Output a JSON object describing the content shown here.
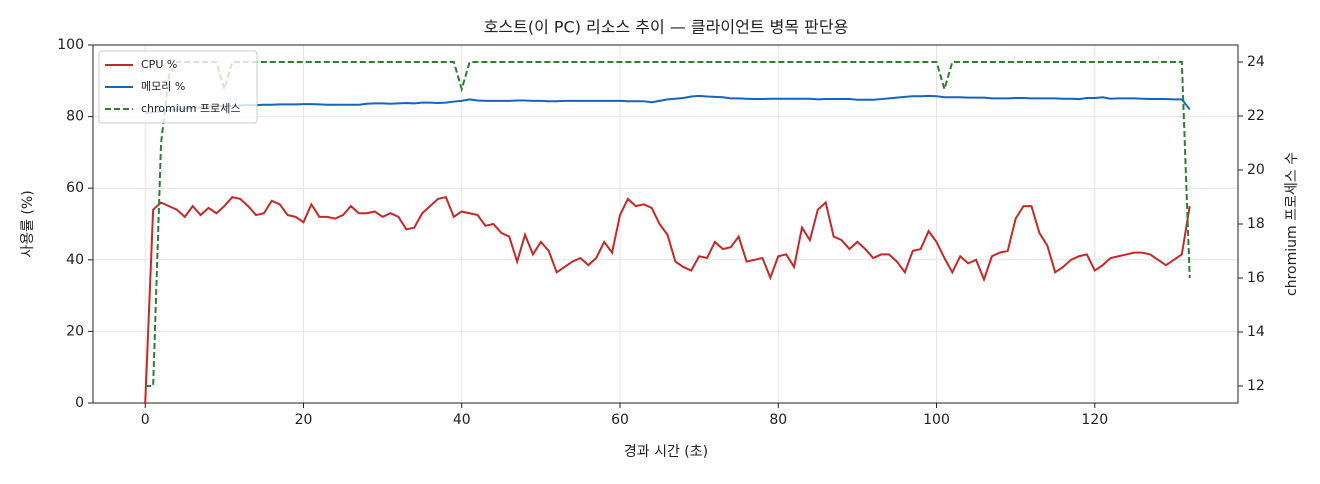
{
  "chart_data": {
    "type": "line",
    "title": "호스트(이 PC) 리소스 추이 — 클라이언트 병목 판단용",
    "xlabel": "경과 시간 (초)",
    "ylabel": "사용률 (%)",
    "y2label": "chromium 프로세스 수",
    "x": [
      0,
      1,
      2,
      3,
      4,
      5,
      6,
      7,
      8,
      9,
      10,
      11,
      12,
      13,
      14,
      15,
      16,
      17,
      18,
      19,
      20,
      21,
      22,
      23,
      24,
      25,
      26,
      27,
      28,
      29,
      30,
      31,
      32,
      33,
      34,
      35,
      36,
      37,
      38,
      39,
      40,
      41,
      42,
      43,
      44,
      45,
      46,
      47,
      48,
      49,
      50,
      51,
      52,
      53,
      54,
      55,
      56,
      57,
      58,
      59,
      60,
      61,
      62,
      63,
      64,
      65,
      66,
      67,
      68,
      69,
      70,
      71,
      72,
      73,
      74,
      75,
      76,
      77,
      78,
      79,
      80,
      81,
      82,
      83,
      84,
      85,
      86,
      87,
      88,
      89,
      90,
      91,
      92,
      93,
      94,
      95,
      96,
      97,
      98,
      99,
      100,
      101,
      102,
      103,
      104,
      105,
      106,
      107,
      108,
      109,
      110,
      111,
      112,
      113,
      114,
      115,
      116,
      117,
      118,
      119,
      120,
      121,
      122,
      123,
      124,
      125,
      126,
      127,
      128,
      129,
      130,
      131,
      132
    ],
    "series": [
      {
        "name": "CPU %",
        "color": "#c62828",
        "dash": false,
        "values": [
          0,
          54,
          56,
          55,
          54,
          52,
          55,
          52.5,
          54.5,
          53,
          55,
          57.5,
          57,
          55,
          52.5,
          53,
          56.5,
          55.5,
          52.5,
          52,
          50.5,
          55.5,
          52,
          52,
          51.5,
          52.5,
          55,
          53,
          53,
          53.5,
          52,
          53,
          52,
          48.5,
          49,
          53,
          55,
          57,
          57.5,
          52,
          53.5,
          53,
          52.5,
          49.5,
          50,
          47.5,
          46.5,
          39.5,
          47,
          41.5,
          45,
          42.5,
          36.5,
          38,
          39.5,
          40.5,
          38.5,
          40.5,
          45,
          42,
          52.5,
          57,
          55,
          55.5,
          54.5,
          50,
          47,
          39.5,
          38,
          37,
          41,
          40.5,
          45,
          43,
          43.5,
          46.5,
          39.5,
          40,
          40.5,
          35,
          41,
          41.5,
          38,
          49,
          45.5,
          54,
          56,
          46.5,
          45.5,
          43,
          45,
          43,
          40.5,
          41.5,
          41.5,
          39.5,
          36.5,
          42.5,
          43,
          48,
          45,
          40.5,
          36.5,
          41,
          39,
          40,
          34.5,
          41,
          42,
          42.5,
          51.5,
          55,
          55,
          47.5,
          44,
          36.5,
          38,
          40,
          41,
          41.5,
          37,
          38.5,
          40.5,
          41,
          41.5,
          42,
          42,
          41.5,
          40,
          38.5,
          40,
          41.5,
          55
        ]
      },
      {
        "name": "메모리 %",
        "color": "#1565c0",
        "dash": false,
        "values": [
          81,
          81.2,
          81.5,
          81.8,
          82,
          82.2,
          82.4,
          82.6,
          82.8,
          83,
          83,
          83,
          83.1,
          83.2,
          83.2,
          83.3,
          83.3,
          83.4,
          83.4,
          83.4,
          83.5,
          83.5,
          83.4,
          83.3,
          83.3,
          83.3,
          83.3,
          83.3,
          83.6,
          83.7,
          83.7,
          83.6,
          83.7,
          83.8,
          83.7,
          83.9,
          83.9,
          83.8,
          83.9,
          84.2,
          84.4,
          84.8,
          84.5,
          84.4,
          84.4,
          84.4,
          84.4,
          84.5,
          84.5,
          84.4,
          84.4,
          84.3,
          84.3,
          84.4,
          84.4,
          84.4,
          84.4,
          84.4,
          84.4,
          84.4,
          84.4,
          84.3,
          84.3,
          84.3,
          84,
          84.4,
          84.8,
          85,
          85.2,
          85.6,
          85.8,
          85.6,
          85.5,
          85.4,
          85.1,
          85.1,
          85,
          84.9,
          84.9,
          85,
          85,
          85,
          85,
          85,
          85,
          84.8,
          84.9,
          84.9,
          84.9,
          84.9,
          84.7,
          84.7,
          84.7,
          84.9,
          85.1,
          85.3,
          85.5,
          85.7,
          85.7,
          85.8,
          85.7,
          85.4,
          85.4,
          85.4,
          85.3,
          85.3,
          85.3,
          85.1,
          85.1,
          85.1,
          85.2,
          85.2,
          85.1,
          85.1,
          85.1,
          85.1,
          85,
          85,
          84.9,
          85.2,
          85.2,
          85.4,
          85,
          85.1,
          85.1,
          85.1,
          85,
          84.9,
          84.9,
          84.9,
          84.8,
          84.8,
          82
        ]
      },
      {
        "name": "chromium 프로세스",
        "color": "#2e7d32",
        "dash": true,
        "axis": "y2",
        "values": [
          12,
          12,
          21,
          23.5,
          24,
          24,
          24,
          24,
          24,
          24,
          23,
          24,
          24,
          24,
          24,
          24,
          24,
          24,
          24,
          24,
          24,
          24,
          24,
          24,
          24,
          24,
          24,
          24,
          24,
          24,
          24,
          24,
          24,
          24,
          24,
          24,
          24,
          24,
          24,
          24,
          23,
          24,
          24,
          24,
          24,
          24,
          24,
          24,
          24,
          24,
          24,
          24,
          24,
          24,
          24,
          24,
          24,
          24,
          24,
          24,
          24,
          24,
          24,
          24,
          24,
          24,
          24,
          24,
          24,
          24,
          24,
          24,
          24,
          24,
          24,
          24,
          24,
          24,
          24,
          24,
          24,
          24,
          24,
          24,
          24,
          24,
          24,
          24,
          24,
          24,
          24,
          24,
          24,
          24,
          24,
          24,
          24,
          24,
          24,
          24,
          24,
          23,
          24,
          24,
          24,
          24,
          24,
          24,
          24,
          24,
          24,
          24,
          24,
          24,
          24,
          24,
          24,
          24,
          24,
          24,
          24,
          24,
          24,
          24,
          24,
          24,
          24,
          24,
          24,
          24,
          24,
          24,
          16
        ]
      }
    ],
    "xlim": [
      -6.6,
      138.1
    ],
    "xticks": [
      0,
      20,
      40,
      60,
      80,
      100,
      120
    ],
    "ylim": [
      0,
      100
    ],
    "yticks": [
      0,
      20,
      40,
      60,
      80,
      100
    ],
    "y2lim": [
      11.37,
      24.63
    ],
    "y2ticks": [
      12,
      14,
      16,
      18,
      20,
      22,
      24
    ],
    "grid": true,
    "legend": "upper-left"
  }
}
